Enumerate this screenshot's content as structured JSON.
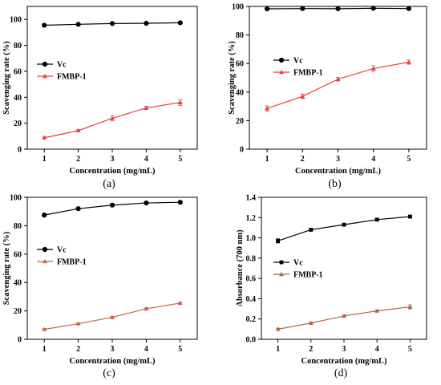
{
  "chart_data": [
    {
      "type": "line",
      "panel_label": "(a)",
      "xlabel": "Concentration (mg/mL)",
      "ylabel": "Scavenging rate (%)",
      "xlim": [
        0.5,
        5.5
      ],
      "ylim": [
        0,
        110
      ],
      "x_ticks": [
        1,
        2,
        3,
        4,
        5
      ],
      "y_ticks": [
        0,
        20,
        40,
        60,
        80,
        100
      ],
      "x": [
        1,
        2,
        3,
        4,
        5
      ],
      "legend_position": "middle-left",
      "series": [
        {
          "name": "Vc",
          "color": "#000000",
          "marker": "circle",
          "values": [
            95.5,
            96.2,
            96.8,
            97.0,
            97.4
          ],
          "errors": [
            0.5,
            0.4,
            0.4,
            0.4,
            0.4
          ]
        },
        {
          "name": "FMBP-1",
          "color": "#e8413e",
          "marker": "triangle",
          "values": [
            8.8,
            14.3,
            23.8,
            31.8,
            36.0
          ],
          "errors": [
            1.0,
            0.8,
            2.0,
            1.3,
            2.2
          ]
        }
      ]
    },
    {
      "type": "line",
      "panel_label": "(b)",
      "xlabel": "Concentration (mg/mL)",
      "ylabel": "Scavenging rate (%)",
      "xlim": [
        0.5,
        5.5
      ],
      "ylim": [
        0,
        100
      ],
      "x_ticks": [
        1,
        2,
        3,
        4,
        5
      ],
      "y_ticks": [
        0,
        20,
        40,
        60,
        80,
        100
      ],
      "x": [
        1,
        2,
        3,
        4,
        5
      ],
      "legend_position": "upper-left",
      "series": [
        {
          "name": "Vc",
          "color": "#000000",
          "marker": "circle",
          "values": [
            98.3,
            98.5,
            98.4,
            98.7,
            98.5
          ],
          "errors": [
            0.6,
            0.5,
            0.7,
            0.4,
            0.8
          ]
        },
        {
          "name": "FMBP-1",
          "color": "#e8413e",
          "marker": "triangle",
          "values": [
            28.5,
            37.0,
            49.0,
            56.5,
            61.0
          ],
          "errors": [
            1.8,
            1.6,
            1.2,
            2.0,
            1.5
          ]
        }
      ]
    },
    {
      "type": "line",
      "panel_label": "(c)",
      "xlabel": "Concentration (mg/mL)",
      "ylabel": "Scavenging rate (%)",
      "xlim": [
        0.5,
        5.5
      ],
      "ylim": [
        0,
        100
      ],
      "x_ticks": [
        1,
        2,
        3,
        4,
        5
      ],
      "y_ticks": [
        0,
        20,
        40,
        60,
        80,
        100
      ],
      "x": [
        1,
        2,
        3,
        4,
        5
      ],
      "legend_position": "middle-left",
      "series": [
        {
          "name": "Vc",
          "color": "#000000",
          "marker": "circle",
          "values": [
            87.5,
            92.0,
            94.5,
            96.0,
            96.5
          ],
          "errors": [
            0.8,
            0.5,
            0.4,
            0.4,
            0.3
          ]
        },
        {
          "name": "FMBP-1",
          "color": "#c8624a",
          "marker": "triangle",
          "values": [
            7.0,
            11.0,
            15.5,
            21.5,
            25.5
          ],
          "errors": [
            0.6,
            0.5,
            0.6,
            0.7,
            0.6
          ]
        }
      ]
    },
    {
      "type": "line",
      "panel_label": "(d)",
      "xlabel": "Concentration (mg/mL)",
      "ylabel": "Absorbance (700 nm)",
      "xlim": [
        0.5,
        5.5
      ],
      "ylim": [
        0,
        1.4
      ],
      "x_ticks": [
        1,
        2,
        3,
        4,
        5
      ],
      "y_ticks": [
        0.0,
        0.2,
        0.4,
        0.6,
        0.8,
        1.0,
        1.2,
        1.4
      ],
      "y_tick_labels": [
        "0.0",
        "0.2",
        "0.4",
        "0.6",
        "0.8",
        "1.0",
        "1.2",
        "1.4"
      ],
      "x": [
        1,
        2,
        3,
        4,
        5
      ],
      "legend_position": "middle-left",
      "series": [
        {
          "name": "Vc",
          "color": "#000000",
          "marker": "square",
          "values": [
            0.97,
            1.08,
            1.13,
            1.18,
            1.21
          ],
          "errors": [
            0.02,
            0.01,
            0.01,
            0.01,
            0.01
          ]
        },
        {
          "name": "FMBP-1",
          "color": "#b0683e",
          "marker": "triangle",
          "values": [
            0.1,
            0.16,
            0.23,
            0.28,
            0.32
          ],
          "errors": [
            0.01,
            0.01,
            0.01,
            0.01,
            0.02
          ]
        }
      ]
    }
  ]
}
